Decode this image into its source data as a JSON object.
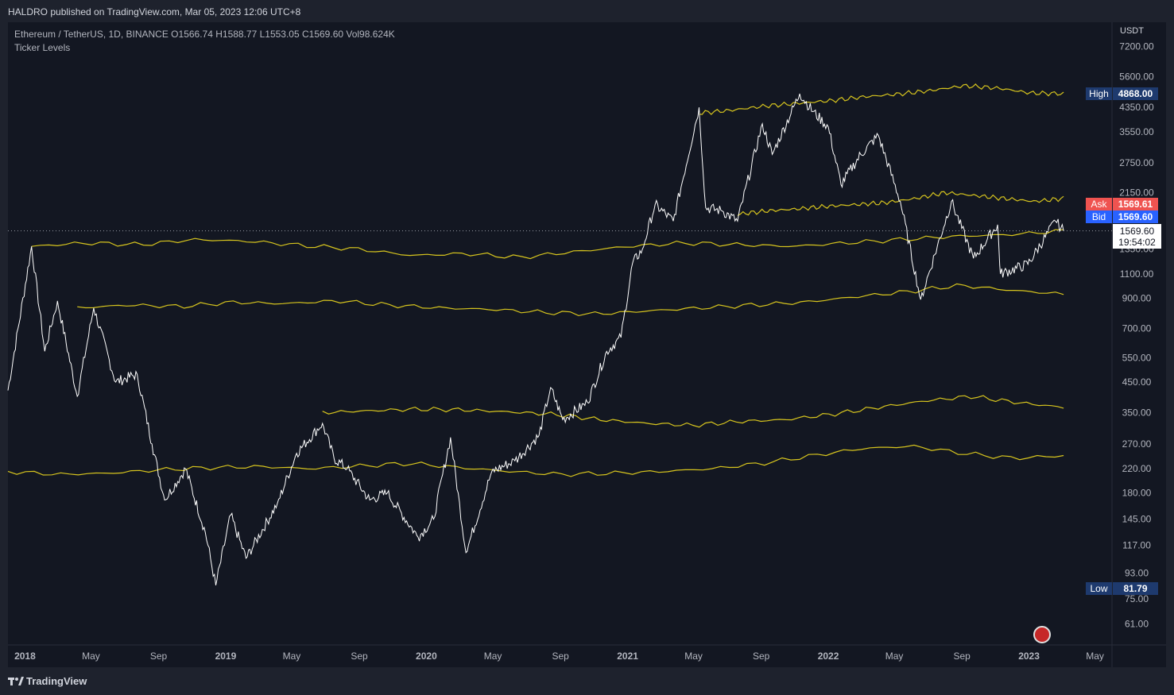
{
  "header": {
    "published": "HALDRO published on TradingView.com, Mar 05, 2023 12:06 UTC+8"
  },
  "legend": {
    "symbol_line": "Ethereum / TetherUS, 1D, BINANCE  O1566.74  H1588.77  L1553.05  C1569.60  Vol98.624K",
    "indicator": "Ticker Levels"
  },
  "footer": {
    "brand": "TradingView"
  },
  "colors": {
    "background": "#131722",
    "price_line": "#ffffff",
    "levels": "#d7c51e",
    "high_label": "#1e3a6e",
    "ask": "#ef5350",
    "bid": "#2962ff"
  },
  "chart_data": {
    "type": "line",
    "scale": "log",
    "currency": "USDT",
    "y_ticks": [
      "7200.00",
      "5600.00",
      "4350.00",
      "3550.00",
      "2750.00",
      "2150.00",
      "1350.00",
      "1100.00",
      "900.00",
      "700.00",
      "550.00",
      "450.00",
      "350.00",
      "270.00",
      "220.00",
      "180.00",
      "145.00",
      "117.00",
      "93.00",
      "75.00",
      "61.00"
    ],
    "x_ticks": [
      "2018",
      "May",
      "Sep",
      "2019",
      "May",
      "Sep",
      "2020",
      "May",
      "Sep",
      "2021",
      "May",
      "Sep",
      "2022",
      "May",
      "Sep",
      "2023",
      "May"
    ],
    "markers": {
      "high_label": "High",
      "high_value": "4868.00",
      "ask_label": "Ask",
      "ask_value": "1569.61",
      "bid_label": "Bid",
      "bid_value": "1569.60",
      "last_value": "1569.60",
      "countdown": "19:54:02",
      "low_label": "Low",
      "low_value": "81.79"
    },
    "price_series": {
      "name": "ETH/USDT",
      "x": [
        "2017-12-01",
        "2018-01-13",
        "2018-02-06",
        "2018-03-01",
        "2018-04-06",
        "2018-05-06",
        "2018-06-15",
        "2018-07-24",
        "2018-08-20",
        "2018-09-12",
        "2018-10-20",
        "2018-11-25",
        "2018-12-14",
        "2019-01-10",
        "2019-02-07",
        "2019-04-05",
        "2019-05-10",
        "2019-06-26",
        "2019-07-17",
        "2019-08-10",
        "2019-09-20",
        "2019-10-22",
        "2019-12-17",
        "2020-01-14",
        "2020-02-14",
        "2020-03-13",
        "2020-04-29",
        "2020-06-10",
        "2020-07-24",
        "2020-08-14",
        "2020-09-05",
        "2020-10-20",
        "2020-11-24",
        "2020-12-20",
        "2021-01-10",
        "2021-01-28",
        "2021-02-20",
        "2021-03-25",
        "2021-05-11",
        "2021-05-23",
        "2021-06-22",
        "2021-07-20",
        "2021-09-03",
        "2021-09-21",
        "2021-11-10",
        "2021-12-04",
        "2022-01-01",
        "2022-01-24",
        "2022-03-01",
        "2022-04-02",
        "2022-05-12",
        "2022-06-18",
        "2022-08-13",
        "2022-09-22",
        "2022-11-05",
        "2022-11-10",
        "2022-12-30",
        "2023-02-18",
        "2023-03-05"
      ],
      "y": [
        420,
        1380,
        580,
        880,
        400,
        830,
        450,
        480,
        270,
        170,
        220,
        130,
        84,
        150,
        105,
        165,
        250,
        320,
        240,
        220,
        170,
        180,
        125,
        145,
        285,
        110,
        215,
        235,
        290,
        430,
        330,
        380,
        580,
        650,
        1200,
        1350,
        1950,
        1700,
        4350,
        1900,
        1850,
        1700,
        3800,
        2950,
        4868,
        4200,
        3700,
        2300,
        2950,
        3450,
        2000,
        890,
        2000,
        1250,
        1650,
        1100,
        1190,
        1700,
        1569.6
      ]
    },
    "levels": [
      {
        "start": "2018-01-13",
        "values": [
          1380,
          1420,
          1400,
          1460,
          1440,
          1390,
          1350,
          1280,
          1300,
          1260,
          1320,
          1380,
          1420,
          1400,
          1380,
          1420,
          1460,
          1500,
          1520,
          1569.6
        ]
      },
      {
        "start": "2018-04-06",
        "values": [
          830,
          850,
          840,
          870,
          860,
          880,
          850,
          830,
          820,
          800,
          790,
          810,
          830,
          850,
          870,
          910,
          950,
          1000,
          960,
          930
        ]
      },
      {
        "start": "2019-06-26",
        "values": [
          350,
          355,
          360,
          358,
          352,
          345,
          330,
          320,
          315,
          325,
          330,
          345,
          365,
          385,
          400,
          380,
          365
        ]
      },
      {
        "start": "2017-12-01",
        "values": [
          215,
          210,
          212,
          218,
          222,
          224,
          220,
          225,
          230,
          222,
          215,
          210,
          212,
          215,
          220,
          230,
          245,
          260,
          265,
          250,
          240,
          245
        ]
      },
      {
        "start": "2021-05-11",
        "values": [
          4150,
          4250,
          4400,
          4500,
          4600,
          4750,
          4850,
          5000,
          5200,
          5100,
          4900,
          4868
        ]
      },
      {
        "start": "2021-07-20",
        "values": [
          1800,
          1850,
          1880,
          1920,
          1950,
          1980,
          2050,
          2150,
          2100,
          2050,
          2000,
          2050
        ]
      }
    ]
  }
}
